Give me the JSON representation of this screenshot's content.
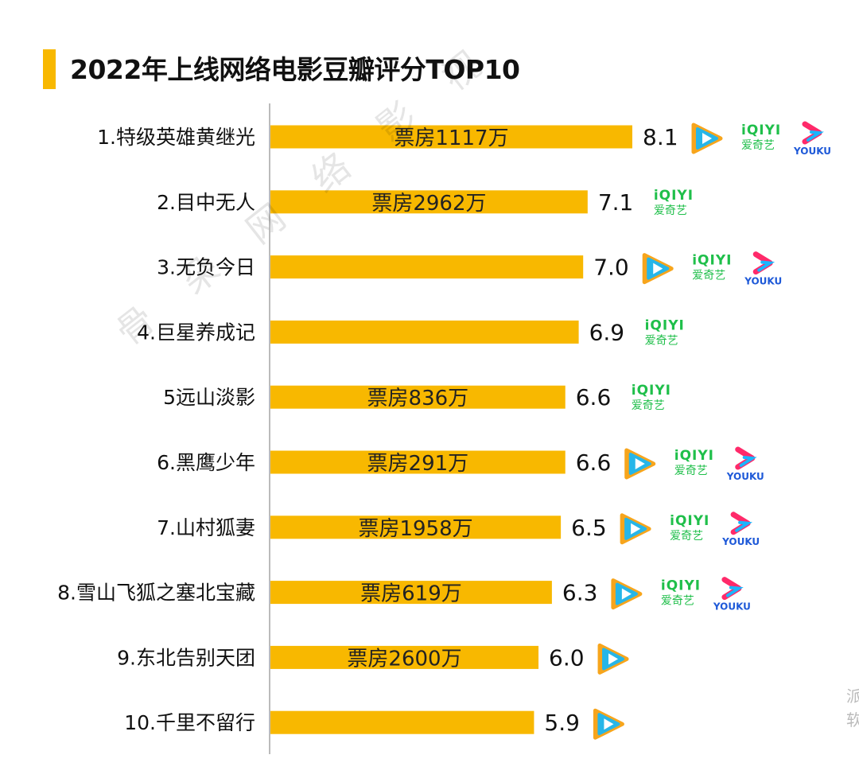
{
  "chart_data": {
    "type": "bar",
    "orientation": "horizontal",
    "title": "2022年上线网络电影豆瓣评分TOP10",
    "categories": [
      "1.特级英雄黄继光",
      "2.目中无人",
      "3.无负今日",
      "4.巨星养成记",
      "5远山淡影",
      "6.黑鹰少年",
      "7.山村狐妻",
      "8.雪山飞狐之塞北宝藏",
      "9.东北告别天团",
      "10.千里不留行"
    ],
    "values": [
      8.1,
      7.1,
      7.0,
      6.9,
      6.6,
      6.6,
      6.5,
      6.3,
      6.0,
      5.9
    ],
    "value_labels": [
      "8.1",
      "7.1",
      "7.0",
      "6.9",
      "6.6",
      "6.6",
      "6.5",
      "6.3",
      "6.0",
      "5.9"
    ],
    "bar_labels": [
      "票房1117万",
      "票房2962万",
      "",
      "",
      "票房836万",
      "票房291万",
      "票房1958万",
      "票房619万",
      "票房2600万",
      ""
    ],
    "platforms": [
      [
        "tencent",
        "iqiyi",
        "youku"
      ],
      [
        "iqiyi"
      ],
      [
        "tencent",
        "iqiyi",
        "youku"
      ],
      [
        "iqiyi"
      ],
      [
        "iqiyi"
      ],
      [
        "tencent",
        "iqiyi",
        "youku"
      ],
      [
        "tencent",
        "iqiyi",
        "youku"
      ],
      [
        "tencent",
        "iqiyi",
        "youku"
      ],
      [
        "tencent"
      ],
      [
        "tencent"
      ]
    ],
    "bar_color": "#f8b800",
    "axis_color": "#bbbbbb",
    "grid": false
  },
  "platform_text": {
    "iqiyi_top": "iQIYI",
    "iqiyi_bottom": "爱奇艺",
    "youku": "YOUKU"
  },
  "watermark": "骨朵网络影视",
  "edge_mark": "派软"
}
